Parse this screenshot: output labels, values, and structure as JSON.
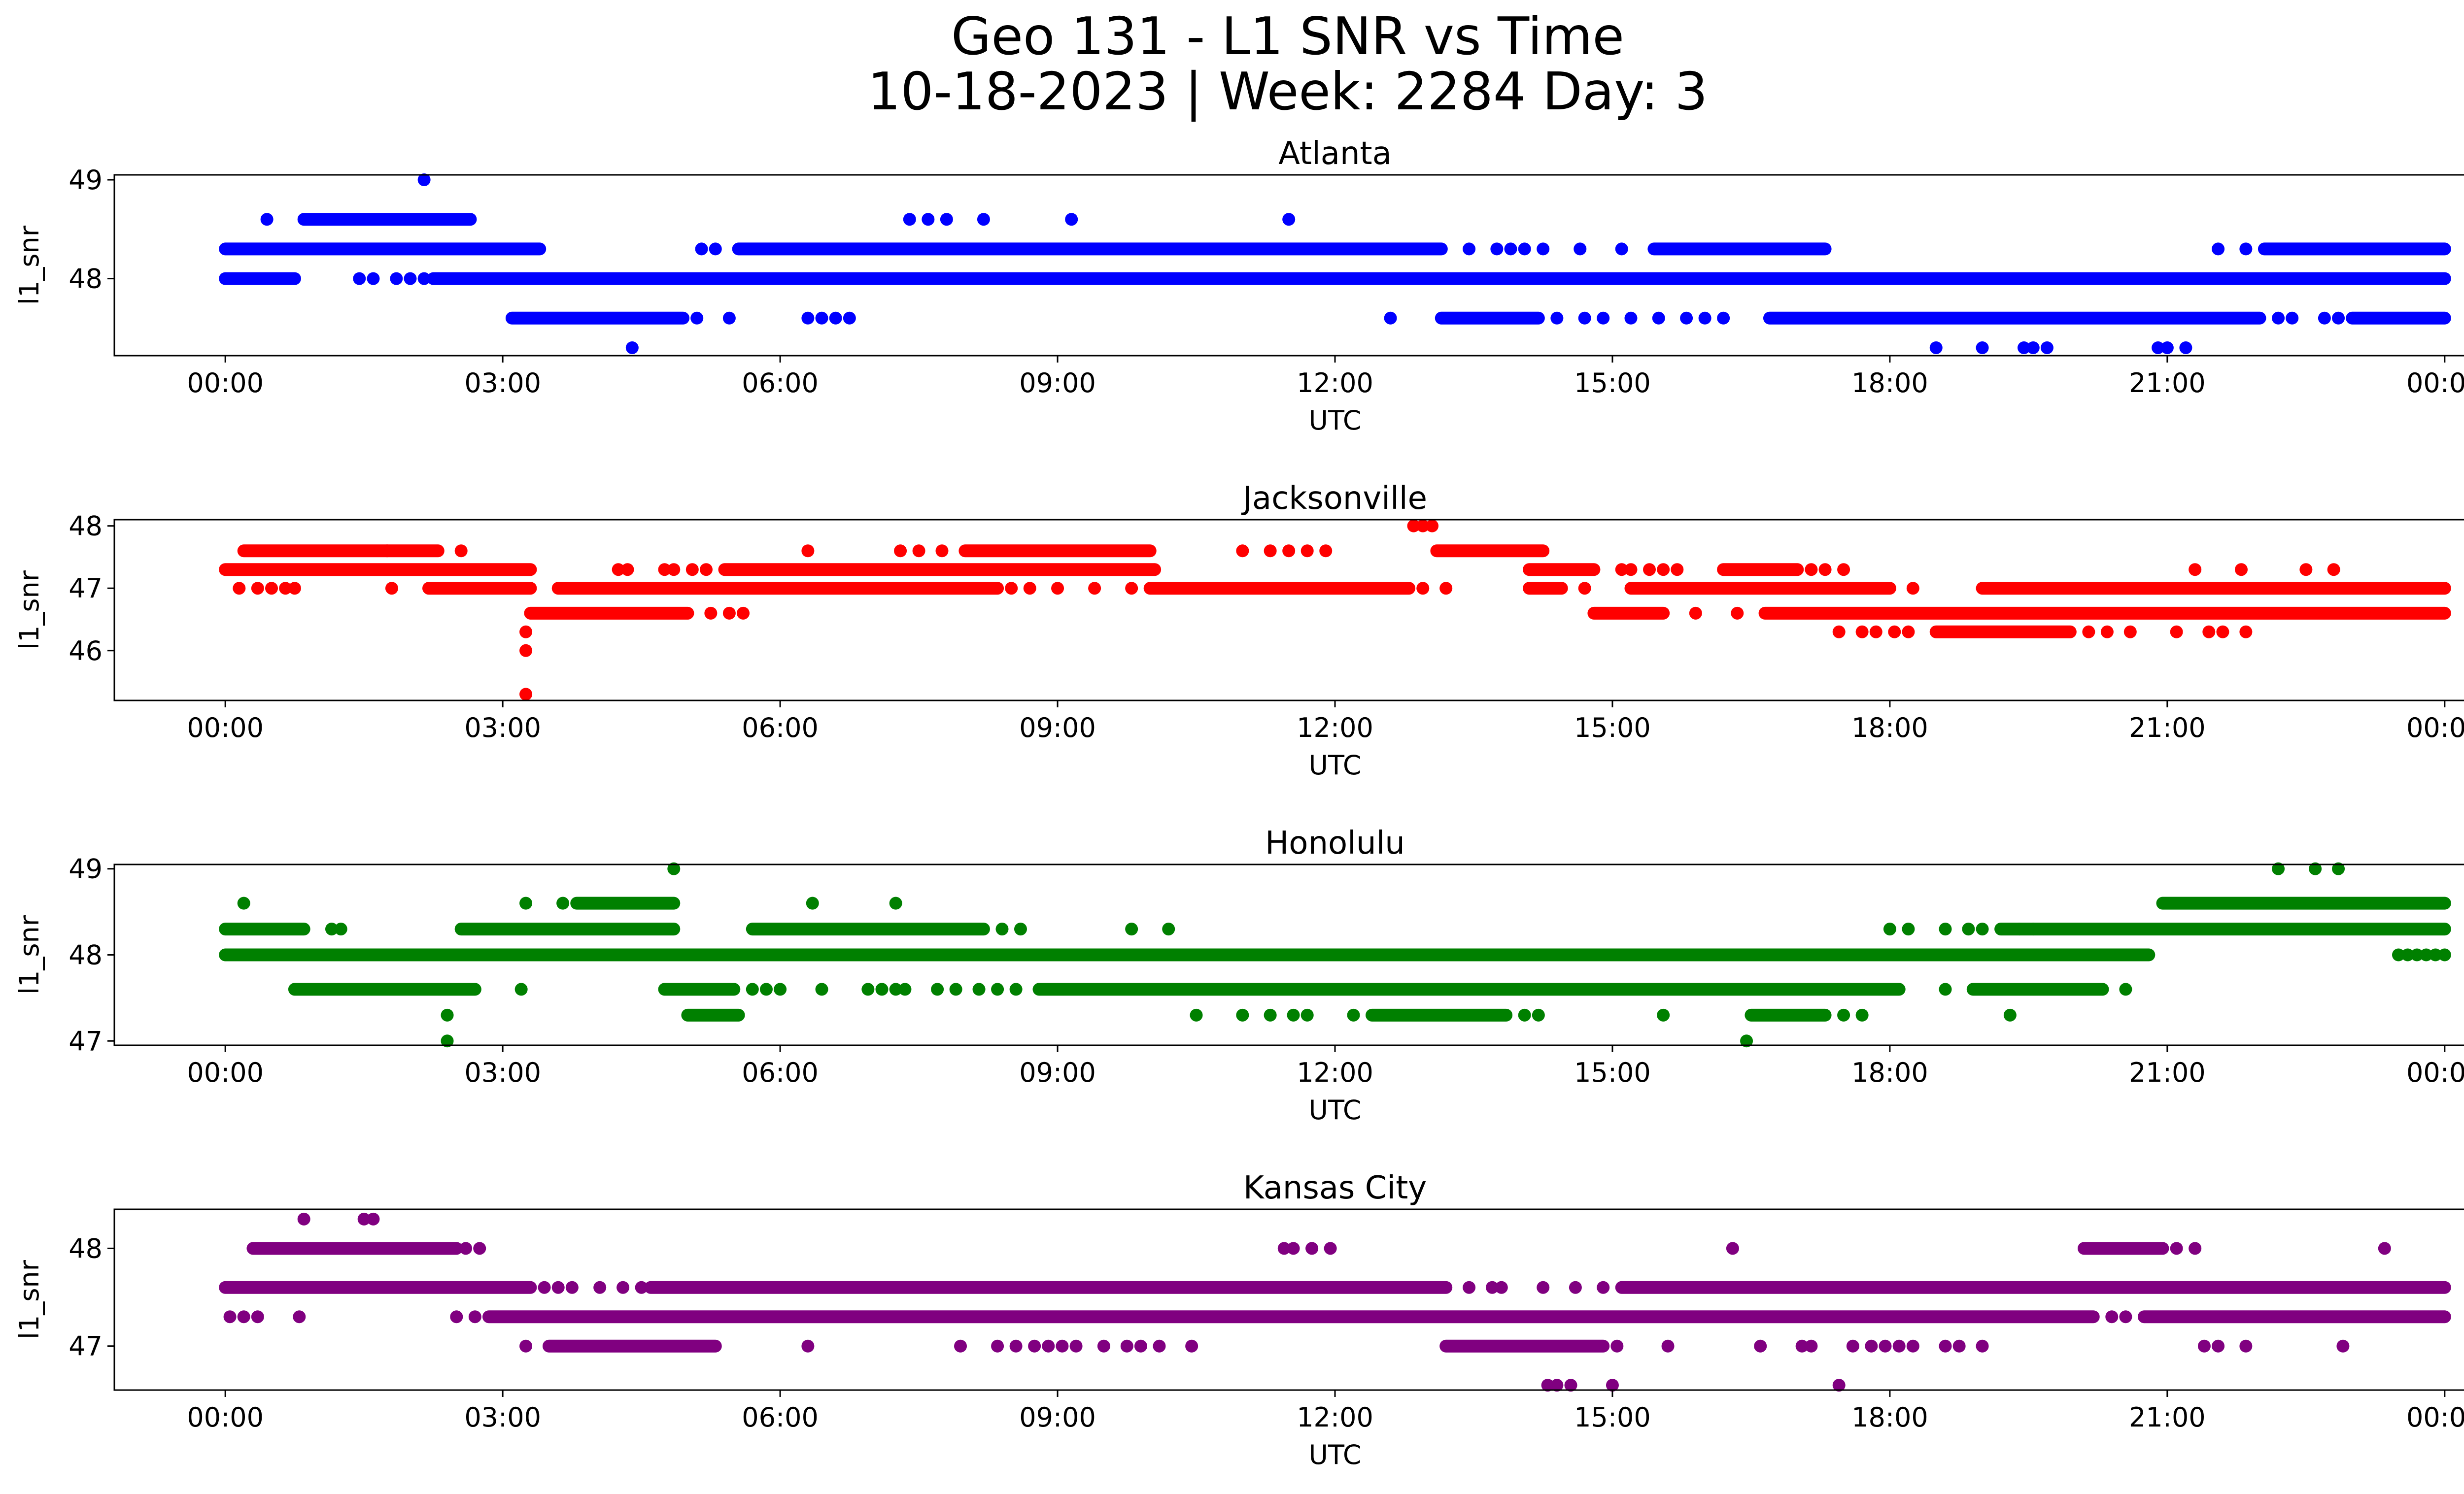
{
  "chart_data": {
    "title": "Geo 131 - L1 SNR vs Time",
    "subtitle": "10-18-2023 | Week: 2284 Day: 3",
    "type": "scatter",
    "x_unit": "hours UTC",
    "x_ticks": [
      "00:00",
      "03:00",
      "06:00",
      "09:00",
      "12:00",
      "15:00",
      "18:00",
      "21:00",
      "00:00"
    ],
    "x_tick_values": [
      0,
      3,
      6,
      9,
      12,
      15,
      18,
      21,
      24
    ],
    "xlim": [
      -1.2,
      25.2
    ],
    "grid": false,
    "panels": [
      {
        "title": "Atlanta",
        "color": "#0000ff",
        "xlabel": "UTC",
        "ylabel": "l1_snr",
        "ylim": [
          47.22,
          49.05
        ],
        "y_ticks": [
          "48",
          "49"
        ],
        "y_tick_values": [
          48,
          49
        ],
        "series": [
          {
            "y": 48.0,
            "dense": [
              [
                0.0,
                0.75
              ],
              [
                2.25,
                24.0
              ]
            ],
            "dots": [
              1.45,
              1.6,
              1.85,
              2.0,
              2.15
            ]
          },
          {
            "y": 48.3,
            "dense": [
              [
                0.0,
                3.4
              ],
              [
                5.55,
                13.15
              ],
              [
                15.45,
                17.3
              ],
              [
                22.05,
                24.0
              ]
            ],
            "dots": [
              5.15,
              5.3,
              13.45,
              13.75,
              13.9,
              14.05,
              14.25,
              14.65,
              15.1,
              21.55,
              21.85
            ]
          },
          {
            "y": 47.6,
            "dense": [
              [
                3.1,
                4.95
              ],
              [
                13.15,
                14.2
              ],
              [
                16.7,
                22.0
              ],
              [
                23.0,
                24.0
              ]
            ],
            "dots": [
              5.1,
              5.45,
              6.3,
              6.45,
              6.6,
              6.75,
              12.6,
              14.4,
              14.7,
              14.9,
              15.2,
              15.5,
              15.8,
              16.0,
              16.2,
              22.2,
              22.35,
              22.7,
              22.85
            ]
          },
          {
            "y": 48.6,
            "dense": [
              [
                0.85,
                2.65
              ]
            ],
            "dots": [
              0.45,
              7.4,
              7.6,
              7.8,
              8.2,
              9.15,
              11.5
            ]
          },
          {
            "y": 49.0,
            "dense": [],
            "dots": [
              2.15
            ]
          },
          {
            "y": 47.3,
            "dense": [],
            "dots": [
              4.4,
              18.5,
              19.0,
              19.45,
              19.55,
              19.7,
              20.9,
              21.0,
              21.2
            ]
          }
        ]
      },
      {
        "title": "Jacksonville",
        "color": "#ff0000",
        "xlabel": "UTC",
        "ylabel": "l1_snr",
        "ylim": [
          45.2,
          48.1
        ],
        "y_ticks": [
          "46",
          "47",
          "48"
        ],
        "y_tick_values": [
          46,
          47,
          48
        ],
        "series": [
          {
            "y": 47.3,
            "dense": [
              [
                0.0,
                3.3
              ],
              [
                5.4,
                10.05
              ],
              [
                14.1,
                14.8
              ],
              [
                16.2,
                17.0
              ]
            ],
            "dots": [
              4.25,
              4.35,
              4.75,
              4.85,
              5.05,
              5.2,
              15.1,
              15.2,
              15.4,
              15.55,
              15.7,
              17.15,
              17.3,
              17.5,
              21.3,
              21.8,
              22.5,
              22.8
            ]
          },
          {
            "y": 47.0,
            "dense": [
              [
                2.2,
                3.3
              ],
              [
                3.6,
                8.35
              ],
              [
                10.0,
                12.8
              ],
              [
                14.1,
                14.45
              ],
              [
                15.2,
                18.0
              ],
              [
                19.0,
                24.0
              ]
            ],
            "dots": [
              0.15,
              0.35,
              0.5,
              0.65,
              0.75,
              1.8,
              8.5,
              8.7,
              9.0,
              9.4,
              9.8,
              12.95,
              13.2,
              14.7,
              18.25
            ]
          },
          {
            "y": 47.6,
            "dense": [
              [
                0.2,
                2.3
              ],
              [
                8.0,
                10.0
              ],
              [
                13.1,
                14.25
              ]
            ],
            "dots": [
              1.75,
              2.55,
              6.3,
              7.3,
              7.5,
              7.75,
              11.0,
              11.3,
              11.5,
              11.7,
              11.9
            ]
          },
          {
            "y": 46.6,
            "dense": [
              [
                3.3,
                5.0
              ],
              [
                14.8,
                15.55
              ],
              [
                16.65,
                24.0
              ]
            ],
            "dots": [
              5.25,
              5.45,
              5.6,
              15.9,
              16.35
            ]
          },
          {
            "y": 46.3,
            "dense": [
              [
                18.5,
                19.95
              ]
            ],
            "dots": [
              3.25,
              17.45,
              17.7,
              17.85,
              18.05,
              18.2,
              20.15,
              20.35,
              20.6,
              21.1,
              21.45,
              21.6,
              21.85
            ]
          },
          {
            "y": 46.0,
            "dense": [],
            "dots": [
              3.25
            ]
          },
          {
            "y": 45.3,
            "dense": [],
            "dots": [
              3.25
            ]
          },
          {
            "y": 48.0,
            "dense": [],
            "dots": [
              12.85,
              12.95,
              13.05
            ]
          }
        ]
      },
      {
        "title": "Honolulu",
        "color": "#008000",
        "xlabel": "UTC",
        "ylabel": "l1_snr",
        "ylim": [
          46.95,
          49.05
        ],
        "y_ticks": [
          "47",
          "48",
          "49"
        ],
        "y_tick_values": [
          47,
          48,
          49
        ],
        "series": [
          {
            "y": 48.0,
            "dense": [
              [
                0.0,
                20.8
              ]
            ],
            "dots": [
              23.5,
              23.6,
              23.7,
              23.8,
              23.9,
              24.0
            ]
          },
          {
            "y": 48.3,
            "dense": [
              [
                0.0,
                0.85
              ],
              [
                2.55,
                4.85
              ],
              [
                5.7,
                8.2
              ],
              [
                19.2,
                24.0
              ]
            ],
            "dots": [
              1.15,
              1.25,
              8.4,
              8.6,
              9.8,
              10.2,
              18.0,
              18.2,
              18.6,
              18.85,
              19.0,
              19.4,
              19.55
            ]
          },
          {
            "y": 47.6,
            "dense": [
              [
                0.75,
                2.7
              ],
              [
                4.75,
                5.5
              ],
              [
                8.8,
                18.1
              ],
              [
                18.9,
                20.3
              ]
            ],
            "dots": [
              3.2,
              5.7,
              5.85,
              6.0,
              6.45,
              6.95,
              7.1,
              7.25,
              7.35,
              7.7,
              7.9,
              8.15,
              8.35,
              8.55,
              18.6,
              20.55
            ]
          },
          {
            "y": 48.6,
            "dense": [
              [
                3.8,
                4.85
              ],
              [
                20.95,
                24.0
              ]
            ],
            "dots": [
              0.2,
              3.25,
              3.65,
              6.35,
              7.25
            ]
          },
          {
            "y": 47.3,
            "dense": [
              [
                5.0,
                5.55
              ],
              [
                12.4,
                13.85
              ],
              [
                16.5,
                17.3
              ]
            ],
            "dots": [
              2.4,
              10.5,
              11.0,
              11.3,
              11.55,
              11.7,
              12.2,
              14.05,
              14.2,
              15.55,
              17.5,
              17.7,
              19.3
            ]
          },
          {
            "y": 47.0,
            "dense": [],
            "dots": [
              2.4,
              16.45
            ]
          },
          {
            "y": 49.0,
            "dense": [],
            "dots": [
              4.85,
              22.2,
              22.6,
              22.85
            ]
          }
        ]
      },
      {
        "title": "Kansas City",
        "color": "#800080",
        "xlabel": "UTC",
        "ylabel": "l1_snr",
        "ylim": [
          46.55,
          48.4
        ],
        "y_ticks": [
          "47",
          "48"
        ],
        "y_tick_values": [
          47,
          48
        ],
        "series": [
          {
            "y": 47.6,
            "dense": [
              [
                0.0,
                3.3
              ],
              [
                4.6,
                13.2
              ],
              [
                15.1,
                24.0
              ]
            ],
            "dots": [
              3.45,
              3.6,
              3.75,
              4.05,
              4.3,
              4.5,
              13.45,
              13.7,
              13.8,
              14.25,
              14.6,
              14.9
            ]
          },
          {
            "y": 47.3,
            "dense": [
              [
                2.85,
                20.2
              ],
              [
                20.75,
                24.0
              ]
            ],
            "dots": [
              0.05,
              0.2,
              0.35,
              0.8,
              2.5,
              2.7,
              20.4,
              20.55
            ]
          },
          {
            "y": 48.0,
            "dense": [
              [
                0.3,
                2.5
              ],
              [
                20.1,
                20.95
              ]
            ],
            "dots": [
              2.6,
              2.75,
              11.45,
              11.55,
              11.75,
              11.95,
              16.3,
              21.1,
              21.3,
              23.35
            ]
          },
          {
            "y": 47.0,
            "dense": [
              [
                3.5,
                5.3
              ],
              [
                13.2,
                14.9
              ]
            ],
            "dots": [
              3.25,
              6.3,
              7.95,
              8.35,
              8.55,
              8.75,
              8.9,
              9.05,
              9.2,
              9.5,
              9.75,
              9.9,
              10.1,
              10.45,
              15.05,
              15.6,
              16.6,
              17.05,
              17.15,
              17.6,
              17.8,
              17.95,
              18.1,
              18.25,
              18.6,
              18.75,
              19.0,
              21.4,
              21.55,
              21.85,
              22.9
            ]
          },
          {
            "y": 48.3,
            "dense": [],
            "dots": [
              0.85,
              1.5,
              1.6
            ]
          },
          {
            "y": 46.6,
            "dense": [],
            "dots": [
              14.3,
              14.4,
              14.55,
              15.0,
              17.45
            ]
          }
        ]
      }
    ]
  }
}
